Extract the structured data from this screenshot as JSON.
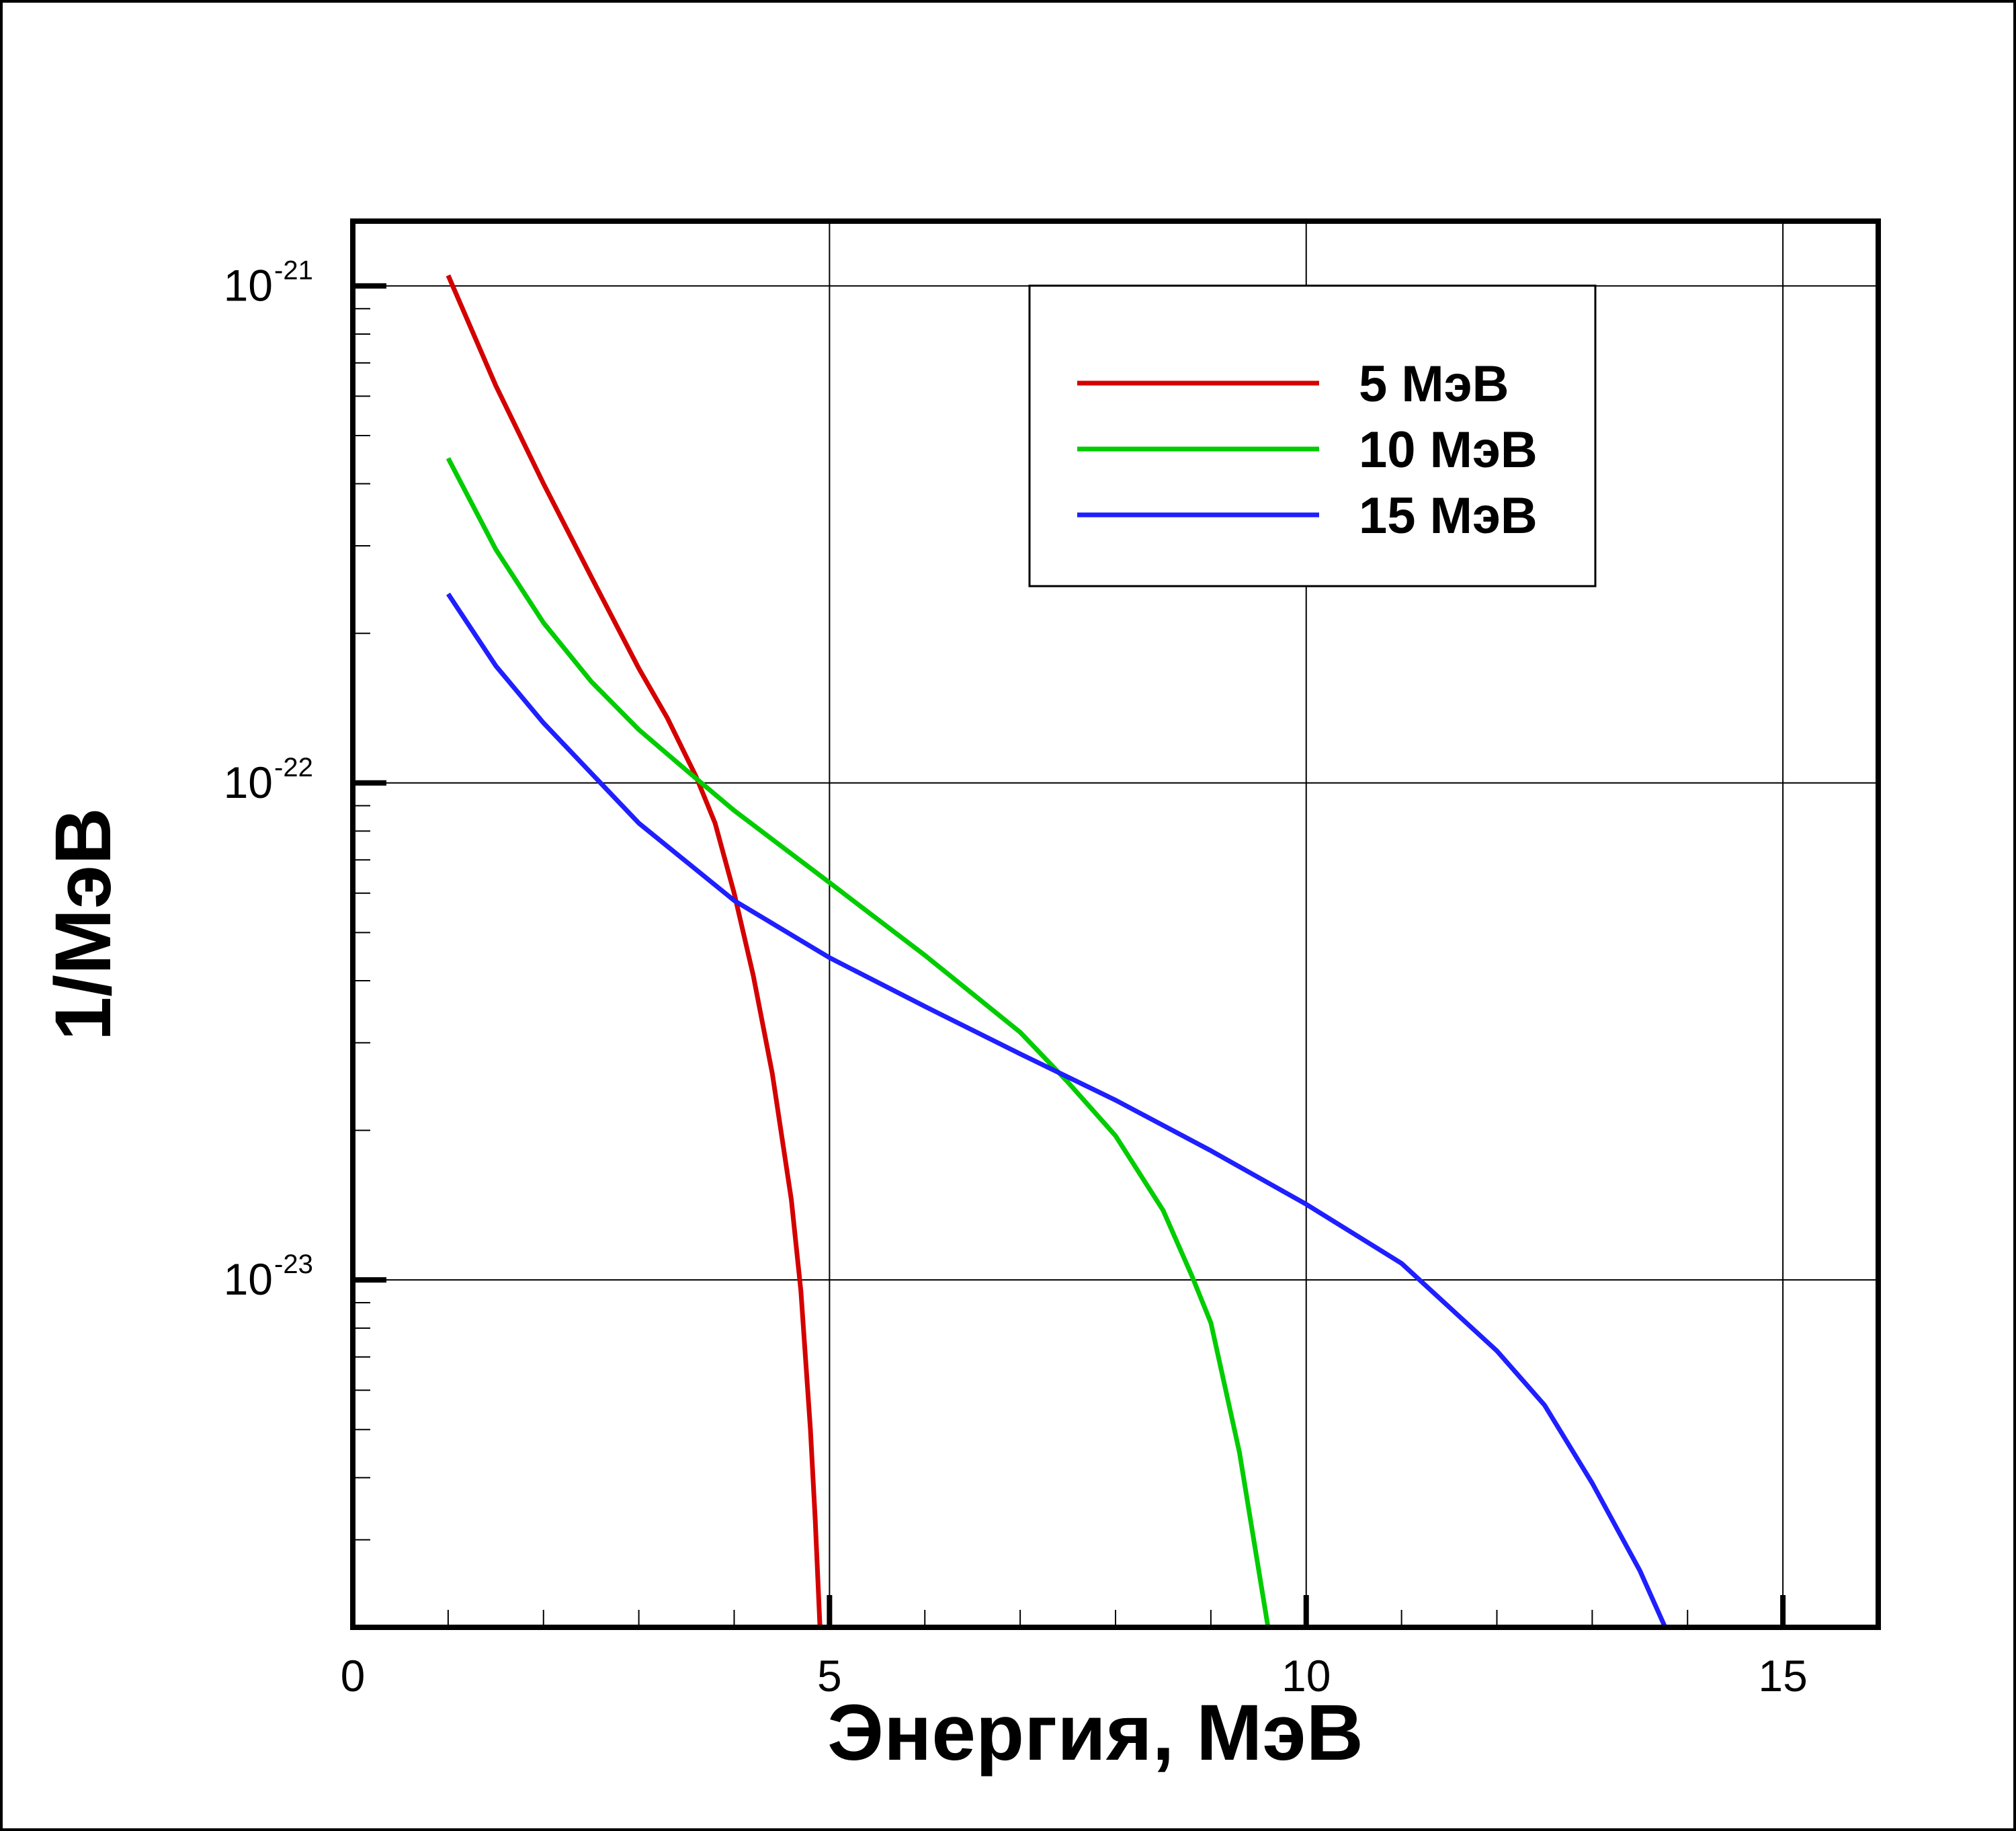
{
  "chart_data": {
    "type": "line",
    "xlabel": "Энергия, МэВ",
    "ylabel": "1/МэВ",
    "xlim": [
      0,
      16
    ],
    "ylim": [
      2e-24,
      1.35e-21
    ],
    "yscale": "log",
    "grid": true,
    "legend_position": "top-right",
    "x_ticks": [
      {
        "value": 0,
        "label": "0"
      },
      {
        "value": 5,
        "label": "5"
      },
      {
        "value": 10,
        "label": "10"
      },
      {
        "value": 15,
        "label": "15"
      }
    ],
    "y_ticks": [
      {
        "value": 1e-21,
        "base": "10",
        "exp": "-21"
      },
      {
        "value": 1e-22,
        "base": "10",
        "exp": "-22"
      },
      {
        "value": 1e-23,
        "base": "10",
        "exp": "-23"
      }
    ],
    "series": [
      {
        "name": "5 МэВ",
        "color": "#d40000",
        "x": [
          1.0,
          1.5,
          2.0,
          2.5,
          3.0,
          3.3,
          3.6,
          3.8,
          4.0,
          4.2,
          4.4,
          4.6,
          4.7,
          4.8,
          4.85,
          4.9
        ],
        "y": [
          1.05e-21,
          6.3e-22,
          4e-22,
          2.6e-22,
          1.7e-22,
          1.35e-22,
          1.03e-22,
          8.3e-23,
          6e-23,
          4.1e-23,
          2.6e-23,
          1.45e-23,
          9.5e-24,
          5e-24,
          3.3e-24,
          2e-24
        ]
      },
      {
        "name": "10 МэВ",
        "color": "#00cc00",
        "x": [
          1.0,
          1.5,
          2.0,
          2.5,
          3.0,
          3.5,
          4.0,
          5.0,
          6.0,
          7.0,
          7.5,
          8.0,
          8.5,
          8.8,
          9.0,
          9.3,
          9.6
        ],
        "y": [
          4.5e-22,
          2.95e-22,
          2.1e-22,
          1.6e-22,
          1.28e-22,
          1.06e-22,
          8.8e-23,
          6.3e-23,
          4.5e-23,
          3.15e-23,
          2.5e-23,
          1.95e-23,
          1.38e-23,
          1.02e-23,
          8.2e-24,
          4.5e-24,
          2e-24
        ]
      },
      {
        "name": "15 МэВ",
        "color": "#1f1fff",
        "x": [
          1.0,
          1.5,
          2.0,
          3.0,
          4.0,
          5.0,
          6.0,
          7.0,
          8.0,
          9.0,
          10.0,
          11.0,
          12.0,
          12.5,
          13.0,
          13.5,
          13.9
        ],
        "y": [
          2.4e-22,
          1.72e-22,
          1.32e-22,
          8.3e-23,
          5.8e-23,
          4.45e-23,
          3.55e-23,
          2.85e-23,
          2.3e-23,
          1.82e-23,
          1.42e-23,
          1.08e-23,
          7.2e-24,
          5.6e-24,
          3.9e-24,
          2.6e-24,
          1.75e-24
        ]
      }
    ]
  }
}
